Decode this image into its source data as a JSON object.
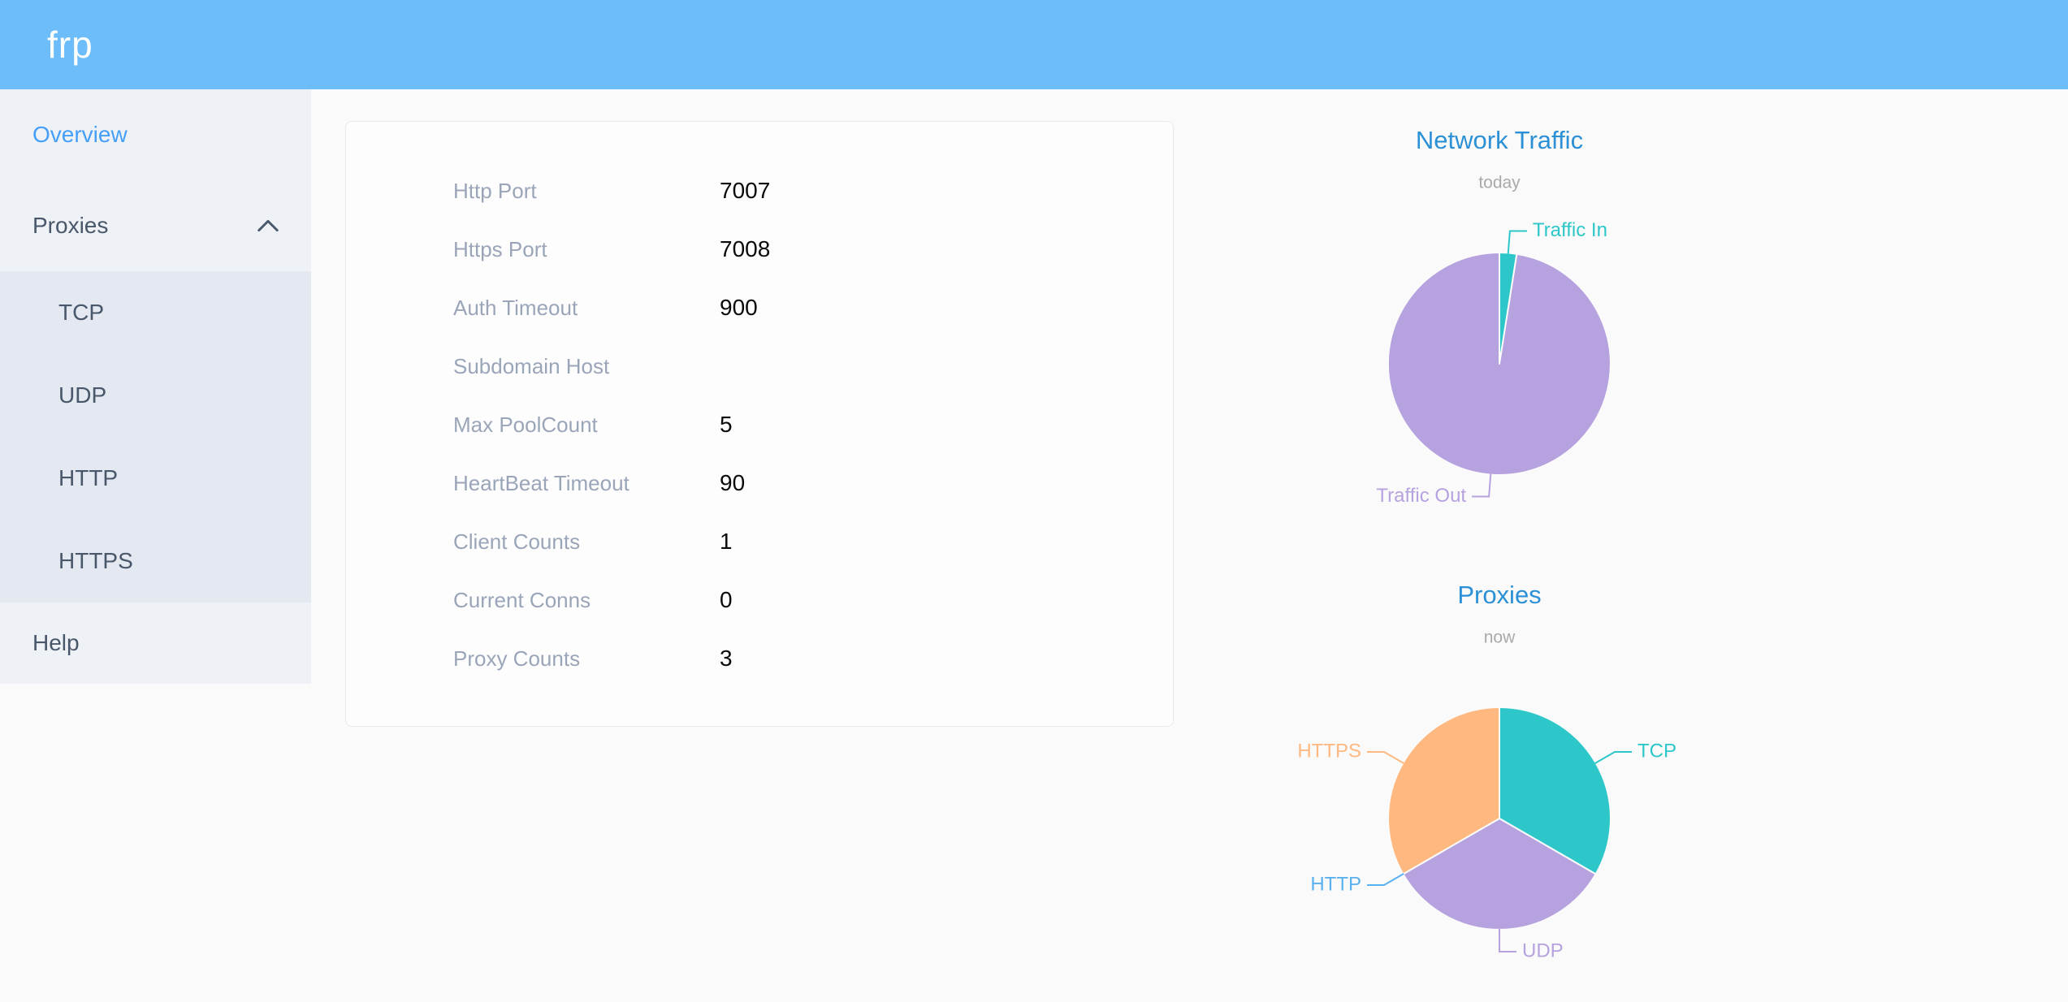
{
  "header": {
    "logo": "frp"
  },
  "sidebar": {
    "items": [
      {
        "id": "overview",
        "label": "Overview",
        "active": true
      },
      {
        "id": "proxies",
        "label": "Proxies",
        "expanded": true,
        "children": [
          {
            "id": "tcp",
            "label": "TCP"
          },
          {
            "id": "udp",
            "label": "UDP"
          },
          {
            "id": "http",
            "label": "HTTP"
          },
          {
            "id": "https",
            "label": "HTTPS"
          }
        ]
      },
      {
        "id": "help",
        "label": "Help"
      }
    ]
  },
  "server_info": {
    "rows": [
      {
        "label": "Http Port",
        "value": "7007"
      },
      {
        "label": "Https Port",
        "value": "7008"
      },
      {
        "label": "Auth Timeout",
        "value": "900"
      },
      {
        "label": "Subdomain Host",
        "value": ""
      },
      {
        "label": "Max PoolCount",
        "value": "5"
      },
      {
        "label": "HeartBeat Timeout",
        "value": "90"
      },
      {
        "label": "Client Counts",
        "value": "1"
      },
      {
        "label": "Current Conns",
        "value": "0"
      },
      {
        "label": "Proxy Counts",
        "value": "3"
      }
    ]
  },
  "chart_data": [
    {
      "type": "pie",
      "title": "Network Traffic",
      "subtitle": "today",
      "legend_position": "none",
      "start_angle_deg": 0,
      "clockwise": true,
      "unit": "%",
      "values_estimated": true,
      "slices": [
        {
          "label": "Traffic In",
          "value": 2.5,
          "color": "#2ec7c9"
        },
        {
          "label": "Traffic Out",
          "value": 97.5,
          "color": "#b6a2de"
        }
      ]
    },
    {
      "type": "pie",
      "title": "Proxies",
      "subtitle": "now",
      "legend_position": "none",
      "start_angle_deg": 0,
      "clockwise": true,
      "unit": "count",
      "slices": [
        {
          "label": "TCP",
          "value": 1,
          "color": "#2ec7c9"
        },
        {
          "label": "UDP",
          "value": 1,
          "color": "#b6a2de"
        },
        {
          "label": "HTTP",
          "value": 0,
          "color": "#5ab1ef"
        },
        {
          "label": "HTTPS",
          "value": 1,
          "color": "#ffb980"
        }
      ]
    }
  ],
  "colors": {
    "header_bg": "#6cbdf9",
    "logo_text": "#ffffff",
    "sidebar_bg": "#eef1f6",
    "submenu_bg": "#e4e8f1",
    "menu_text": "#48576a",
    "menu_active": "#459ff8",
    "page_bg": "#fafafa",
    "card_border": "#e6eaf1",
    "row_label": "#9aa5b8",
    "row_value": "#0a0a0a",
    "chart_title": "#2b90d5",
    "chart_subtitle": "#aaaaaa"
  }
}
